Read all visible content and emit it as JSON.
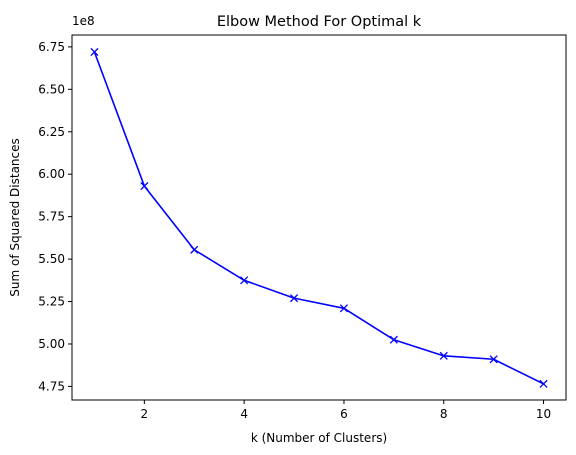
{
  "chart_data": {
    "type": "line",
    "title": "Elbow Method For Optimal k",
    "xlabel": "k (Number of Clusters)",
    "ylabel": "Sum of Squared Distances",
    "y_offset_label": "1e8",
    "x": [
      1,
      2,
      3,
      4,
      5,
      6,
      7,
      8,
      9,
      10
    ],
    "series": [
      {
        "values": [
          6.72,
          5.93,
          5.555,
          5.375,
          5.27,
          5.21,
          5.025,
          4.93,
          4.91,
          4.765
        ],
        "color": "#0000ff",
        "marker": "x"
      }
    ],
    "xlim": [
      0.55,
      10.45
    ],
    "ylim": [
      4.67,
      6.82
    ],
    "x_ticks": [
      2,
      4,
      6,
      8,
      10
    ],
    "x_tick_labels": [
      "2",
      "4",
      "6",
      "8",
      "10"
    ],
    "y_ticks": [
      4.75,
      5.0,
      5.25,
      5.5,
      5.75,
      6.0,
      6.25,
      6.5,
      6.75
    ],
    "y_tick_labels": [
      "4.75",
      "5.00",
      "5.25",
      "5.50",
      "5.75",
      "6.00",
      "6.25",
      "6.50",
      "6.75"
    ],
    "grid": false,
    "legend": "none"
  }
}
